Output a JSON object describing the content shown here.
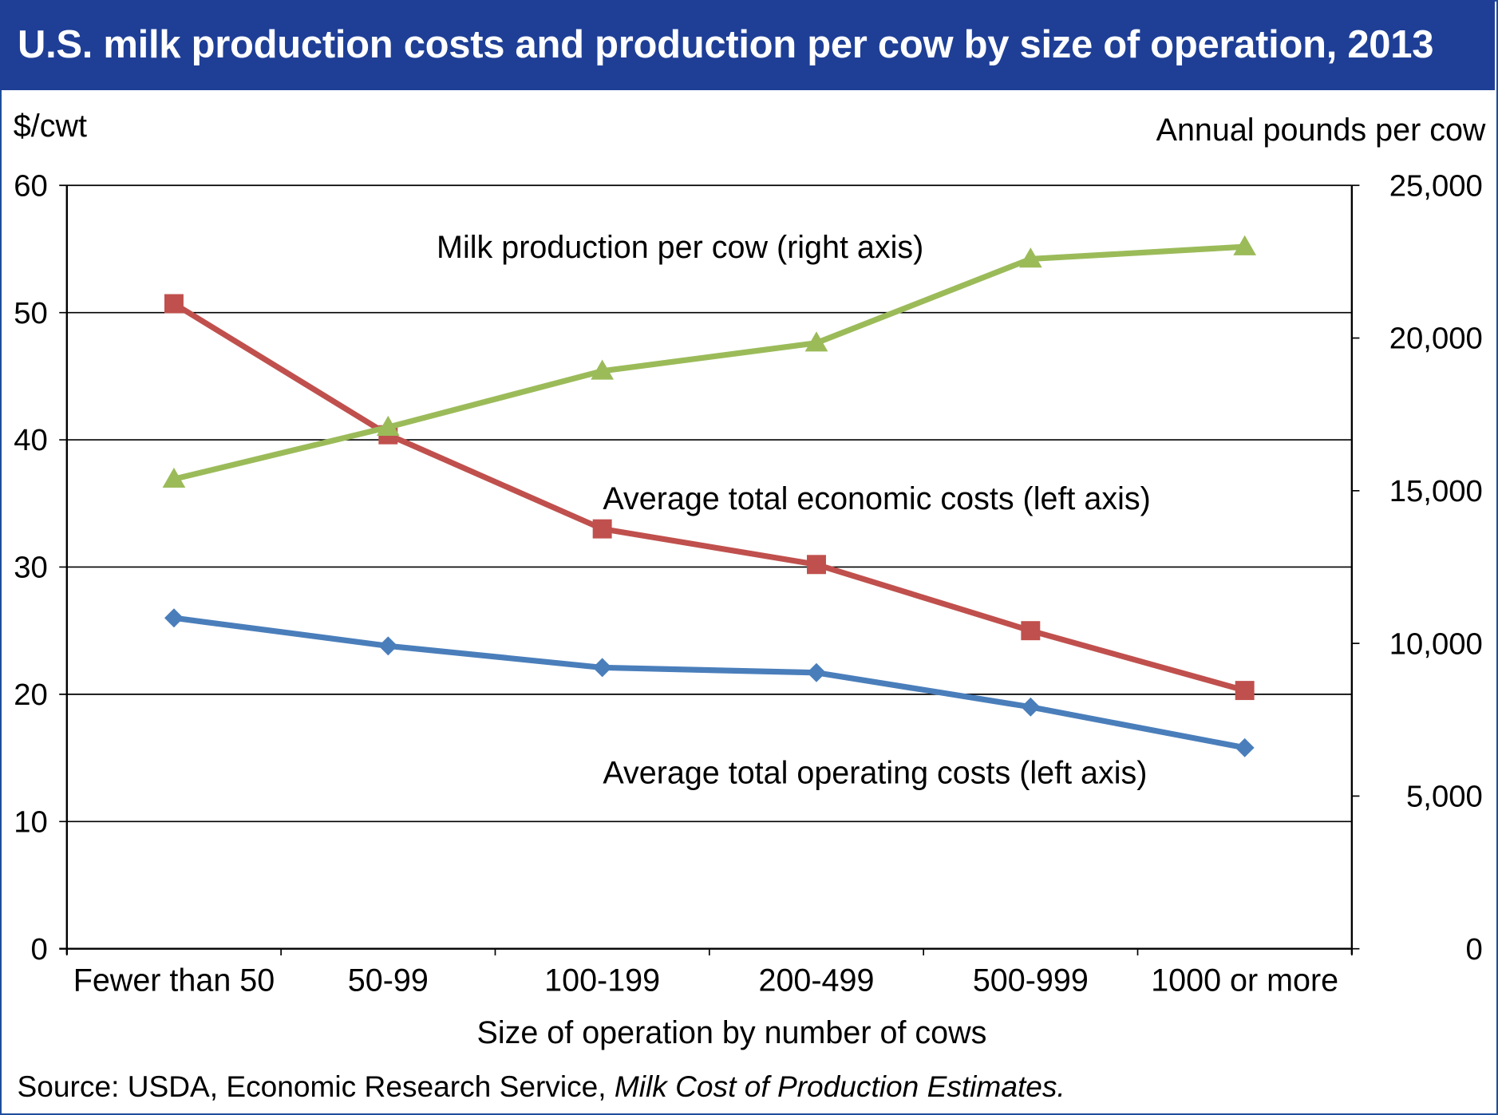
{
  "title": "U.S. milk production costs and production per cow by size of operation, 2013",
  "source": {
    "prefix": "Source: USDA, Economic Research Service, ",
    "italic": "Milk Cost of Production Estimates."
  },
  "colors": {
    "title_bg": "#1f3f96",
    "border": "#1f4e9c",
    "economic": "#c0504d",
    "operating": "#4a7ebb",
    "production": "#9bbb59"
  },
  "chart_data": {
    "type": "line",
    "title": "U.S. milk production costs and production per cow by size of operation, 2013",
    "xlabel": "Size of operation by number of cows",
    "ylabel_left": "$/cwt",
    "ylabel_right": "Annual pounds per cow",
    "categories": [
      "Fewer than 50",
      "50-99",
      "100-199",
      "200-499",
      "500-999",
      "1000 or more"
    ],
    "ylim_left": [
      0,
      60
    ],
    "ylim_right": [
      0,
      25000
    ],
    "left_ticks": [
      "0",
      "10",
      "20",
      "30",
      "40",
      "50",
      "60"
    ],
    "right_ticks": [
      "0",
      "5,000",
      "10,000",
      "15,000",
      "20,000",
      "25,000"
    ],
    "grid": true,
    "series": [
      {
        "name": "Average total economic costs (left axis)",
        "axis": "left",
        "marker": "square",
        "color": "#c0504d",
        "values": [
          50.7,
          40.4,
          33.0,
          30.2,
          25.0,
          20.3
        ]
      },
      {
        "name": "Average total operating costs (left axis)",
        "axis": "left",
        "marker": "diamond",
        "color": "#4a7ebb",
        "values": [
          26.0,
          23.8,
          22.1,
          21.7,
          19.0,
          15.8
        ]
      },
      {
        "name": "Milk production per cow (right axis)",
        "axis": "right",
        "marker": "triangle",
        "color": "#9bbb59",
        "values": [
          15380,
          17080,
          18920,
          19840,
          22590,
          22990
        ]
      }
    ],
    "annotations": [
      "Milk production per cow (right axis)",
      "Average total economic costs (left axis)",
      "Average total operating costs (left axis)"
    ]
  }
}
